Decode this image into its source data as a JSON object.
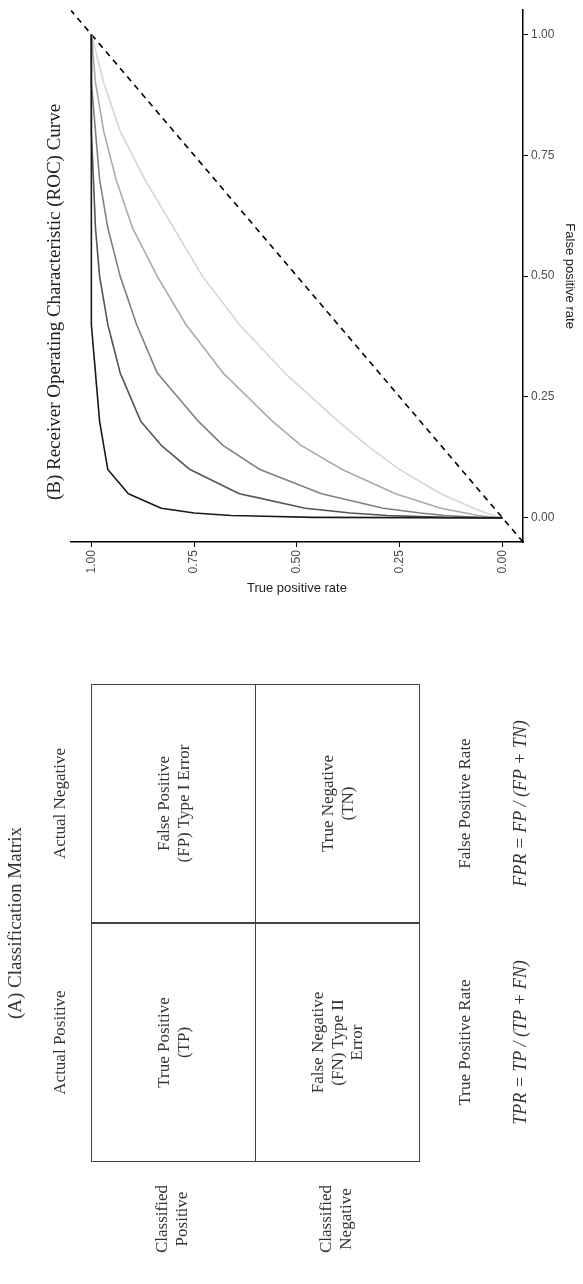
{
  "chart_data": [
    {
      "type": "other",
      "title": "(A) Classification Matrix",
      "annotations": [
        "Actual Positive",
        "Actual Negative",
        "Classified Positive",
        "Classified Negative",
        "True Positive (TP)",
        "False Positive (FP) Type I Error",
        "False Negative (FN) Type II Error",
        "True Negative (TN)",
        "True Positive Rate",
        "TPR = TP / (TP + FN)",
        "False Positive Rate",
        "FPR = FP / (FP + TN)"
      ]
    },
    {
      "type": "line",
      "title": "(B) Receiver Operating Characteristic (ROC) Curve",
      "xlabel": "True positive rate",
      "ylabel": "False positive rate",
      "marker": "none",
      "series": [
        {
          "color": "#1a1a1a",
          "x": [
            0,
            0.46,
            0.66,
            0.75,
            0.83,
            0.91,
            0.96,
            0.97,
            0.98,
            0.99,
            1,
            1
          ],
          "values": [
            0,
            0.001,
            0.005,
            0.01,
            0.02,
            0.05,
            0.1,
            0.15,
            0.2,
            0.3,
            0.4,
            1
          ]
        },
        {
          "color": "#555555",
          "x": [
            0,
            0.14,
            0.28,
            0.37,
            0.48,
            0.64,
            0.76,
            0.83,
            0.88,
            0.93,
            0.96,
            0.98,
            0.99,
            1,
            1
          ],
          "values": [
            0,
            0.001,
            0.005,
            0.01,
            0.02,
            0.05,
            0.1,
            0.15,
            0.2,
            0.3,
            0.4,
            0.5,
            0.6,
            0.8,
            1
          ]
        },
        {
          "color": "#808080",
          "x": [
            0,
            0.06,
            0.14,
            0.2,
            0.29,
            0.44,
            0.59,
            0.68,
            0.74,
            0.84,
            0.89,
            0.93,
            0.96,
            0.98,
            0.99,
            1,
            1
          ],
          "values": [
            0,
            0.001,
            0.005,
            0.01,
            0.02,
            0.05,
            0.1,
            0.15,
            0.2,
            0.3,
            0.4,
            0.5,
            0.6,
            0.7,
            0.8,
            0.9,
            1
          ]
        },
        {
          "color": "#aaaaaa",
          "x": [
            0,
            0.02,
            0.06,
            0.09,
            0.15,
            0.26,
            0.39,
            0.49,
            0.56,
            0.68,
            0.77,
            0.84,
            0.9,
            0.94,
            0.97,
            0.99,
            1
          ],
          "values": [
            0,
            0.001,
            0.005,
            0.01,
            0.02,
            0.05,
            0.1,
            0.15,
            0.2,
            0.3,
            0.4,
            0.5,
            0.6,
            0.7,
            0.8,
            0.9,
            1
          ]
        },
        {
          "color": "#d6d6d6",
          "x": [
            0,
            0.01,
            0.02,
            0.04,
            0.07,
            0.15,
            0.25,
            0.33,
            0.4,
            0.53,
            0.64,
            0.73,
            0.8,
            0.87,
            0.93,
            0.97,
            1
          ],
          "values": [
            0,
            0.001,
            0.005,
            0.01,
            0.02,
            0.05,
            0.1,
            0.15,
            0.2,
            0.3,
            0.4,
            0.5,
            0.6,
            0.7,
            0.8,
            0.9,
            1
          ]
        },
        {
          "type": "line",
          "color": "#000000",
          "line_style": "dashed",
          "x": [
            -0.05,
            1.05
          ],
          "values": [
            -0.05,
            1.05
          ]
        }
      ],
      "xlim": [
        1.05,
        -0.05
      ],
      "ylim": [
        -0.05,
        1.05
      ],
      "xticks": [
        {
          "value": 0,
          "label": "0.00"
        },
        {
          "value": 0.25,
          "label": "0.25"
        },
        {
          "value": 0.5,
          "label": "0.50"
        },
        {
          "value": 0.75,
          "label": "0.75"
        },
        {
          "value": 1,
          "label": "1.00"
        }
      ],
      "yticks": [
        {
          "value": 0,
          "label": "0.00"
        },
        {
          "value": 0.25,
          "label": "0.25"
        },
        {
          "value": 0.5,
          "label": "0.50"
        },
        {
          "value": 0.75,
          "label": "0.75"
        },
        {
          "value": 1,
          "label": "1.00"
        }
      ]
    }
  ]
}
